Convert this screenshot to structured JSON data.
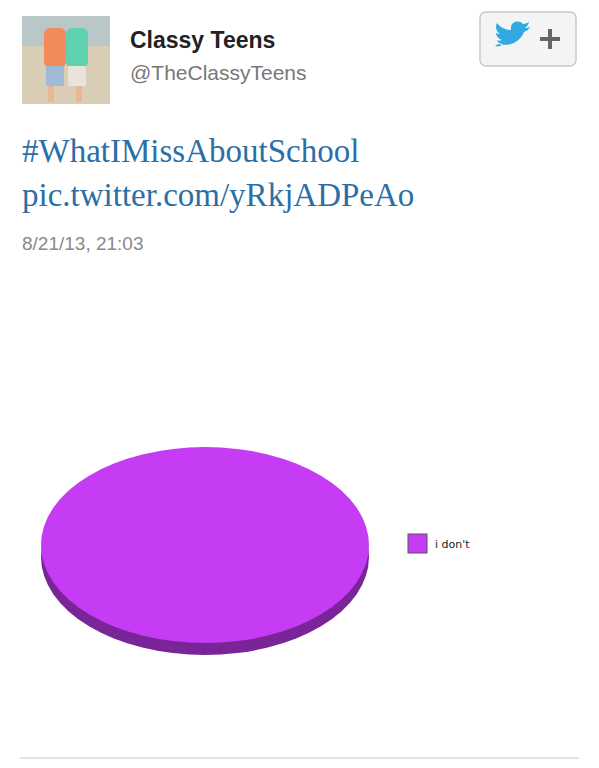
{
  "tweet": {
    "name": "Classy Teens",
    "handle": "@TheClassyTeens",
    "text": "#WhatIMissAboutSchool",
    "link": "pic.twitter.com/yRkjADPeAo",
    "date": "8/21/13, 21:03"
  },
  "chart_data": {
    "type": "pie",
    "categories": [
      "i don't"
    ],
    "values": [
      100
    ],
    "colors": [
      "#c53cf4"
    ],
    "legend": "right"
  }
}
